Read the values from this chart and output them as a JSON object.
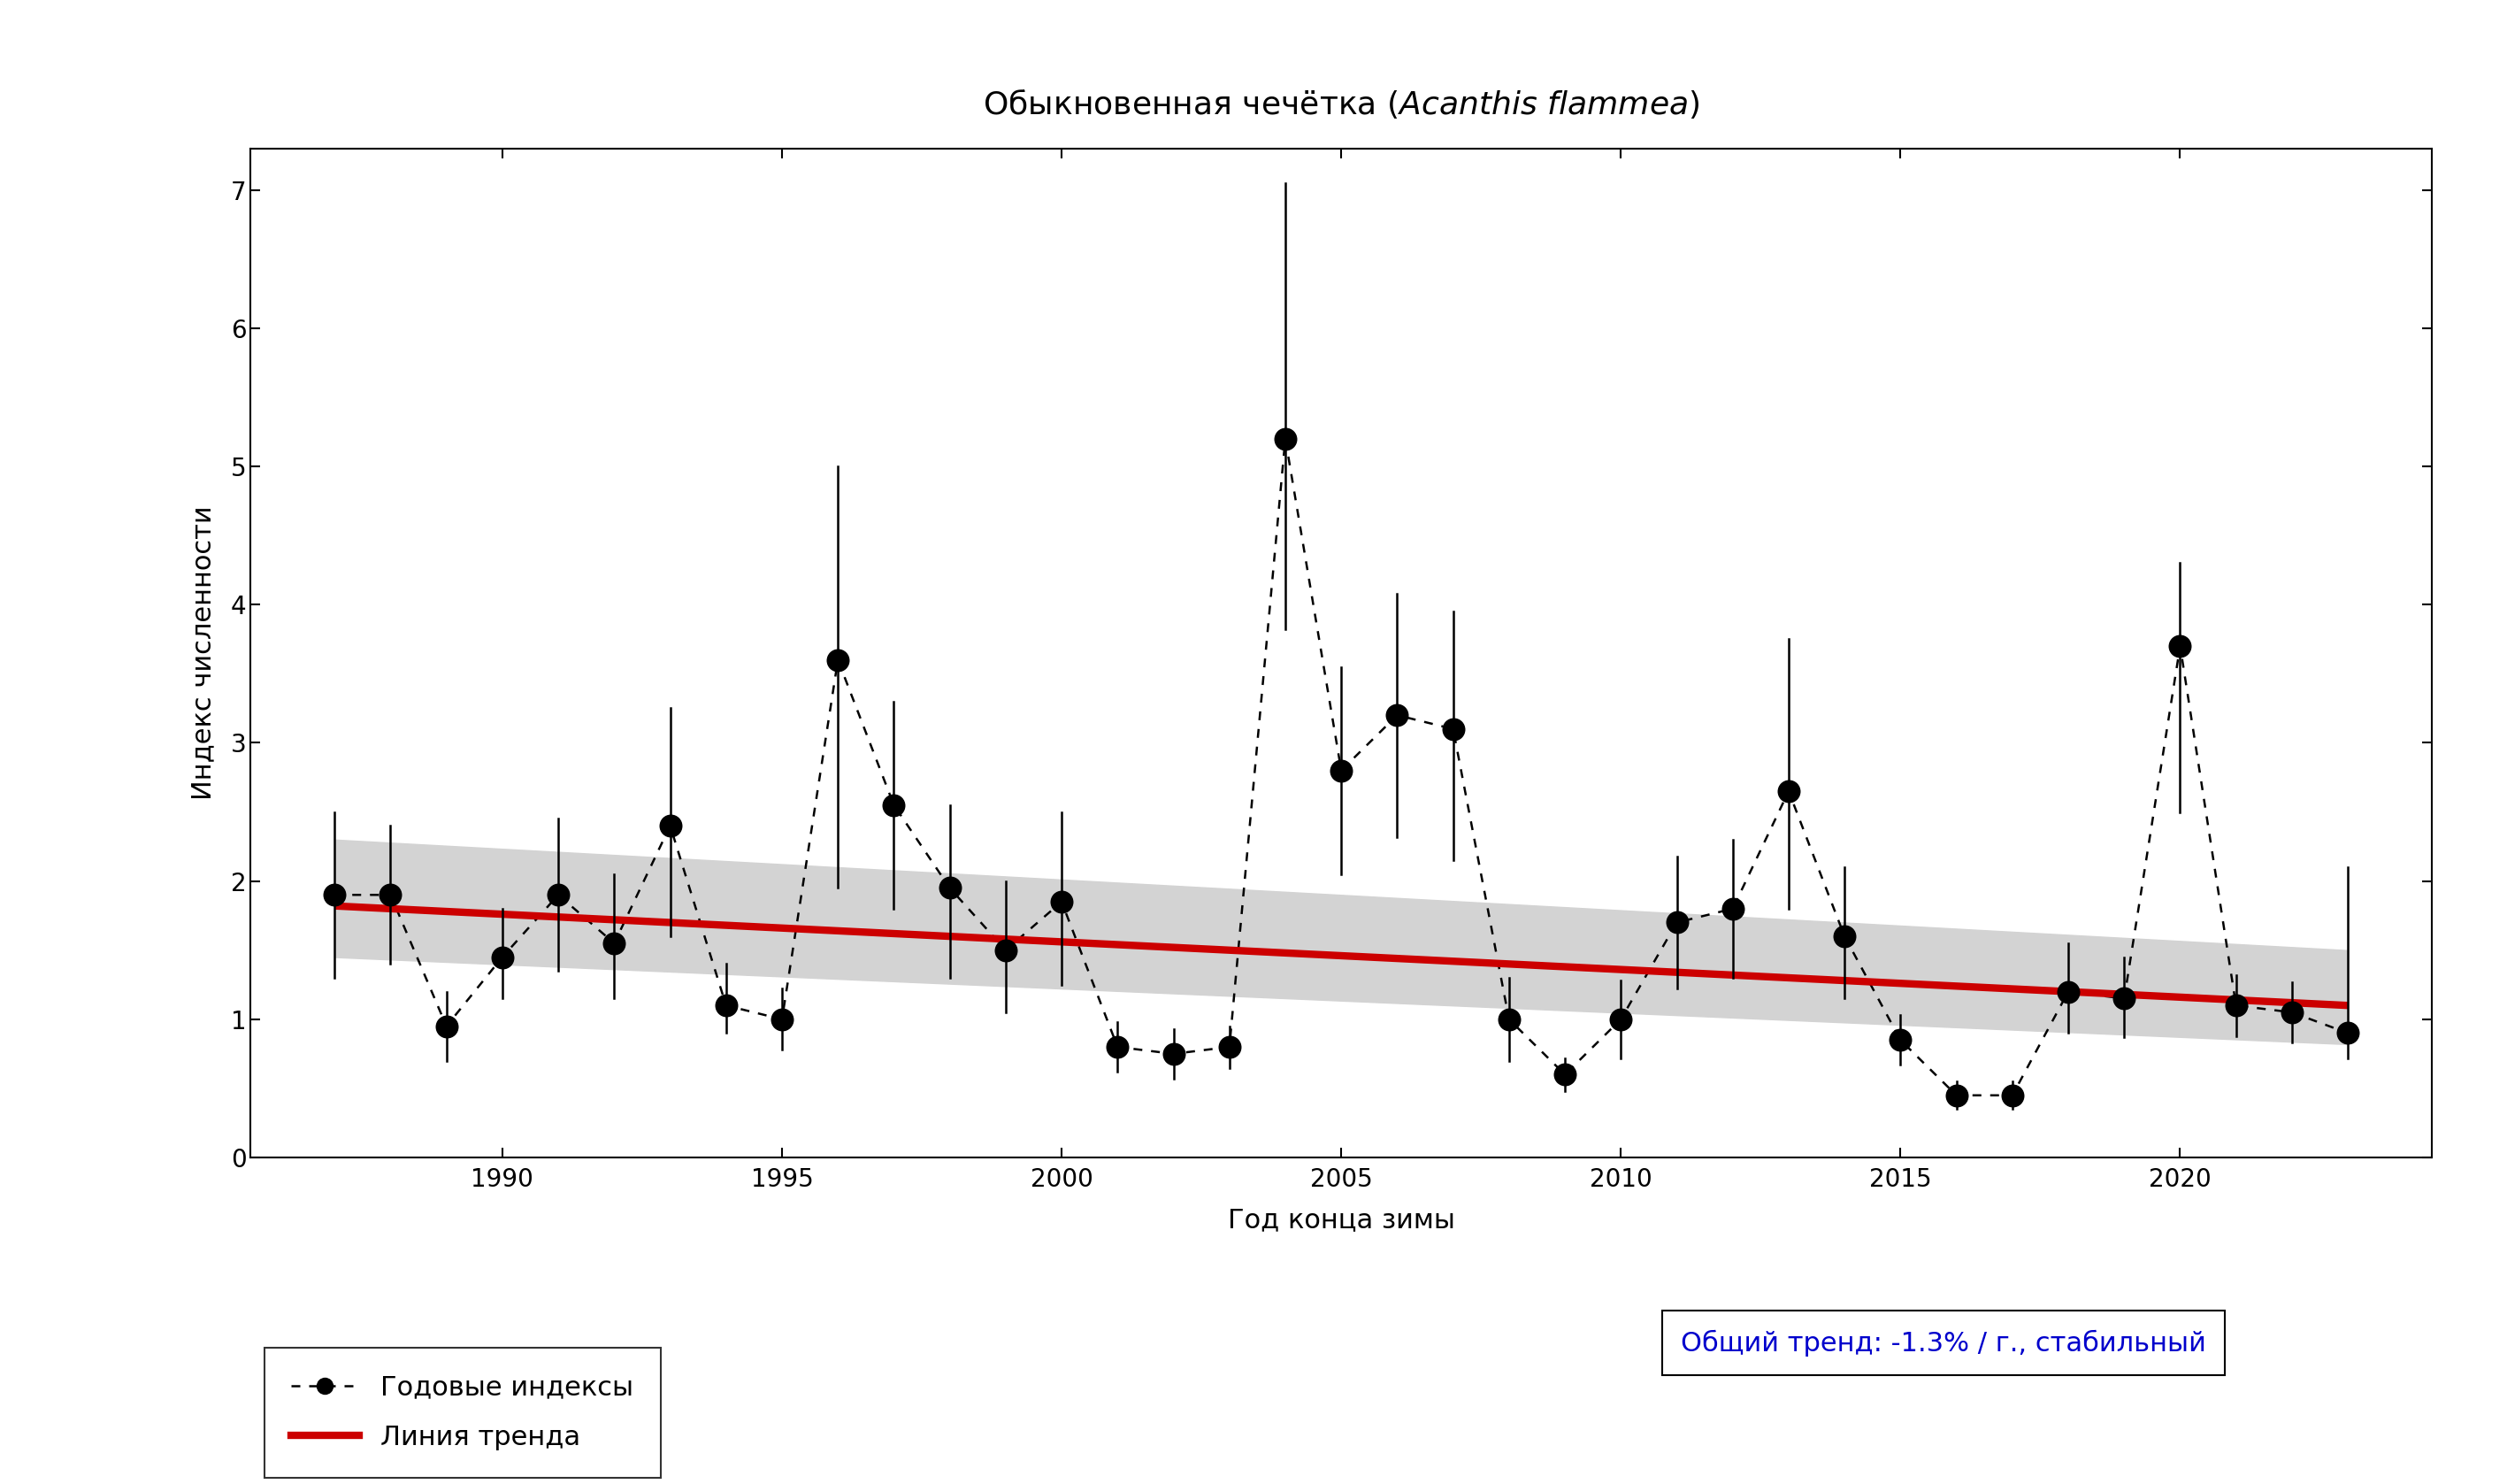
{
  "years": [
    1987,
    1988,
    1989,
    1990,
    1991,
    1992,
    1993,
    1994,
    1995,
    1996,
    1997,
    1998,
    1999,
    2000,
    2001,
    2002,
    2003,
    2004,
    2005,
    2006,
    2007,
    2008,
    2009,
    2010,
    2011,
    2012,
    2013,
    2014,
    2015,
    2016,
    2017,
    2018,
    2019,
    2020,
    2021,
    2022,
    2023
  ],
  "values": [
    1.9,
    1.9,
    0.95,
    1.45,
    1.9,
    1.55,
    2.4,
    1.1,
    1.0,
    3.6,
    2.55,
    1.95,
    1.5,
    1.85,
    0.8,
    0.75,
    0.8,
    5.2,
    2.8,
    3.2,
    3.1,
    1.0,
    0.6,
    1.0,
    1.7,
    1.8,
    2.65,
    1.6,
    0.85,
    0.45,
    0.45,
    1.2,
    1.15,
    3.7,
    1.1,
    1.05,
    0.9
  ],
  "err_low": [
    0.6,
    0.5,
    0.25,
    0.3,
    0.55,
    0.4,
    0.8,
    0.2,
    0.22,
    1.65,
    0.75,
    0.65,
    0.45,
    0.6,
    0.18,
    0.18,
    0.15,
    1.38,
    0.75,
    0.88,
    0.95,
    0.3,
    0.12,
    0.28,
    0.48,
    0.5,
    0.85,
    0.45,
    0.18,
    0.1,
    0.1,
    0.3,
    0.28,
    1.2,
    0.22,
    0.22,
    0.18
  ],
  "err_high": [
    0.6,
    0.5,
    0.25,
    0.35,
    0.55,
    0.5,
    0.85,
    0.3,
    0.22,
    1.4,
    0.75,
    0.6,
    0.5,
    0.65,
    0.18,
    0.18,
    0.15,
    1.85,
    0.75,
    0.88,
    0.85,
    0.3,
    0.12,
    0.28,
    0.48,
    0.5,
    1.1,
    0.5,
    0.18,
    0.1,
    0.1,
    0.35,
    0.3,
    0.6,
    0.22,
    0.22,
    1.2
  ],
  "trend_x": [
    1987,
    2023
  ],
  "trend_y": [
    1.82,
    1.1
  ],
  "ci_upper": [
    2.3,
    1.5
  ],
  "ci_lower": [
    1.45,
    0.82
  ],
  "xlim": [
    1985.5,
    2024.5
  ],
  "ylim": [
    0,
    7.3
  ],
  "yticks": [
    0,
    1,
    2,
    3,
    4,
    5,
    6,
    7
  ],
  "xticks": [
    1990,
    1995,
    2000,
    2005,
    2010,
    2015,
    2020
  ],
  "xlabel": "Год конца зимы",
  "ylabel": "Индекс численности",
  "legend1": "Годовые индексы",
  "legend2": "Линия тренда",
  "trend_text": "Общий тренд: -1.3% / г., стабильный",
  "trend_color": "#0000CC",
  "trend_line_color": "#CC0000",
  "ci_color": "#D3D3D3",
  "title_fontsize": 26,
  "axis_label_fontsize": 22,
  "tick_fontsize": 20,
  "legend_fontsize": 22
}
